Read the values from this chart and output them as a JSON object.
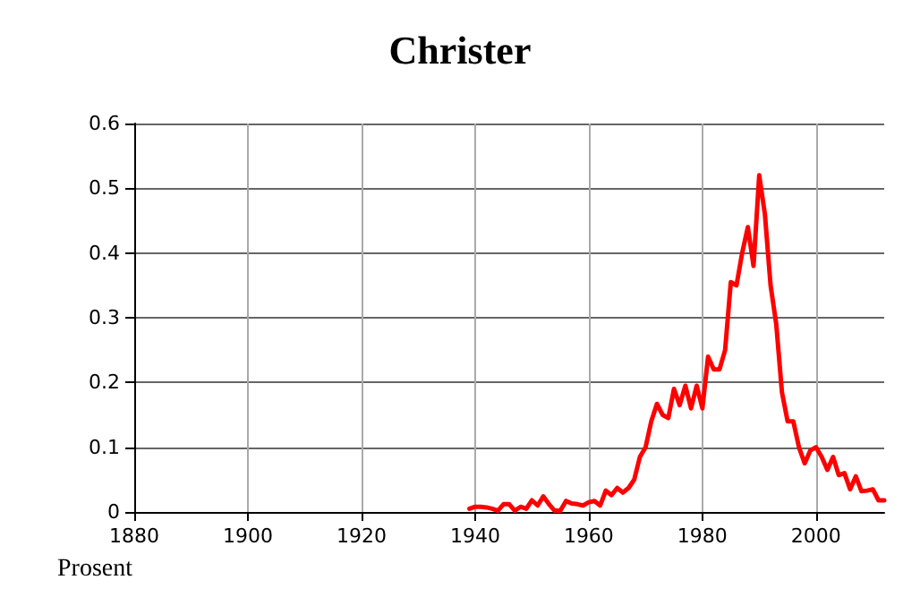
{
  "chart_data": {
    "type": "line",
    "title": "Christer",
    "ylabel": "Prosent",
    "x": [
      1939,
      1940,
      1941,
      1942,
      1943,
      1944,
      1945,
      1946,
      1947,
      1948,
      1949,
      1950,
      1951,
      1952,
      1953,
      1954,
      1955,
      1956,
      1957,
      1958,
      1959,
      1960,
      1961,
      1962,
      1963,
      1964,
      1965,
      1966,
      1967,
      1968,
      1969,
      1970,
      1971,
      1972,
      1973,
      1974,
      1975,
      1976,
      1977,
      1978,
      1979,
      1980,
      1981,
      1982,
      1983,
      1984,
      1985,
      1986,
      1987,
      1988,
      1989,
      1990,
      1991,
      1992,
      1993,
      1994,
      1995,
      1996,
      1997,
      1998,
      1999,
      2000,
      2001,
      2002,
      2003,
      2004,
      2005,
      2006,
      2007,
      2008,
      2009,
      2010,
      2011,
      2012
    ],
    "series": [
      {
        "color": "#ff0000",
        "values": [
          0.005,
          0.008,
          0.008,
          0.007,
          0.005,
          0.002,
          0.012,
          0.012,
          0.002,
          0.008,
          0.005,
          0.018,
          0.01,
          0.024,
          0.012,
          0.002,
          0.002,
          0.017,
          0.013,
          0.012,
          0.01,
          0.015,
          0.017,
          0.01,
          0.033,
          0.026,
          0.037,
          0.03,
          0.037,
          0.05,
          0.085,
          0.1,
          0.14,
          0.167,
          0.15,
          0.145,
          0.19,
          0.165,
          0.195,
          0.16,
          0.195,
          0.16,
          0.24,
          0.22,
          0.22,
          0.25,
          0.355,
          0.35,
          0.4,
          0.44,
          0.38,
          0.52,
          0.46,
          0.35,
          0.29,
          0.185,
          0.14,
          0.14,
          0.1,
          0.075,
          0.095,
          0.1,
          0.085,
          0.065,
          0.085,
          0.057,
          0.06,
          0.035,
          0.055,
          0.032,
          0.033,
          0.035,
          0.018,
          0.018
        ]
      }
    ],
    "xlim": [
      1880,
      2012
    ],
    "xticks": [
      1880,
      1900,
      1920,
      1940,
      1960,
      1980,
      2000
    ],
    "ylim": [
      0,
      0.6
    ],
    "yticks": [
      0,
      0.1,
      0.2,
      0.3,
      0.4,
      0.5,
      0.6
    ],
    "grid": true,
    "marker": "none",
    "line_style": "solid"
  }
}
